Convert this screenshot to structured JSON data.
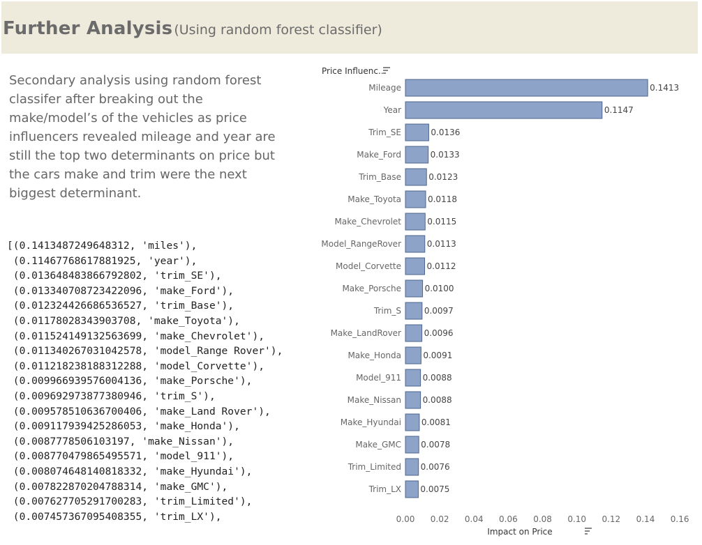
{
  "header": {
    "title": "Further Analysis",
    "subtitle": "(Using random forest classifier)"
  },
  "description": "Secondary analysis using random forest classifer after breaking out the make/model’s of the vehicles as price influencers revealed mileage and year are still the top two determinants on price but the cars make and trim were the next biggest determinant.",
  "code_output": [
    "[(0.1413487249648312, 'miles'),",
    " (0.11467768617881925, 'year'),",
    " (0.013648483866792802, 'trim_SE'),",
    " (0.013340708723422096, 'make_Ford'),",
    " (0.012324426686536527, 'trim_Base'),",
    " (0.01178028343903708, 'make_Toyota'),",
    " (0.011524149132563699, 'make_Chevrolet'),",
    " (0.011340267031042578, 'model_Range Rover'),",
    " (0.011218238188312288, 'model_Corvette'),",
    " (0.009966939576004136, 'make_Porsche'),",
    " (0.009692973877380946, 'trim_S'),",
    " (0.009578510636700406, 'make_Land Rover'),",
    " (0.009117939425286053, 'make_Honda'),",
    " (0.0087778506103197, 'make_Nissan'),",
    " (0.008770479865495571, 'model_911'),",
    " (0.008074648140818332, 'make_Hyundai'),",
    " (0.007822870204788314, 'make_GMC'),",
    " (0.007627705291700283, 'trim_Limited'),",
    " (0.007457367095408355, 'trim_LX'),"
  ],
  "chart_data": {
    "type": "bar",
    "orientation": "horizontal",
    "ylabel": "Price Influenc..",
    "xlabel": "Impact on Price",
    "categories": [
      "Mileage",
      "Year",
      "Trim_SE",
      "Make_Ford",
      "Trim_Base",
      "Make_Toyota",
      "Make_Chevrolet",
      "Model_RangeRover",
      "Model_Corvette",
      "Make_Porsche",
      "Trim_S",
      "Make_LandRover",
      "Make_Honda",
      "Model_911",
      "Make_Nissan",
      "Make_Hyundai",
      "Make_GMC",
      "Trim_Limited",
      "Trim_LX"
    ],
    "values": [
      0.1413,
      0.1147,
      0.0136,
      0.0133,
      0.0123,
      0.0118,
      0.0115,
      0.0113,
      0.0112,
      0.01,
      0.0097,
      0.0096,
      0.0091,
      0.0088,
      0.0088,
      0.0081,
      0.0078,
      0.0076,
      0.0075
    ],
    "value_labels": [
      "0.1413",
      "0.1147",
      "0.0136",
      "0.0133",
      "0.0123",
      "0.0118",
      "0.0115",
      "0.0113",
      "0.0112",
      "0.0100",
      "0.0097",
      "0.0096",
      "0.0091",
      "0.0088",
      "0.0088",
      "0.0081",
      "0.0078",
      "0.0076",
      "0.0075"
    ],
    "xticks": [
      "0.00",
      "0.02",
      "0.04",
      "0.06",
      "0.08",
      "0.10",
      "0.12",
      "0.14",
      "0.16"
    ],
    "xlim": [
      0,
      0.16
    ],
    "grid": false,
    "bar_color": "#8ea3c8",
    "bar_stroke": "#4e6591"
  },
  "icons": {
    "sort": "sort-descending-icon"
  }
}
